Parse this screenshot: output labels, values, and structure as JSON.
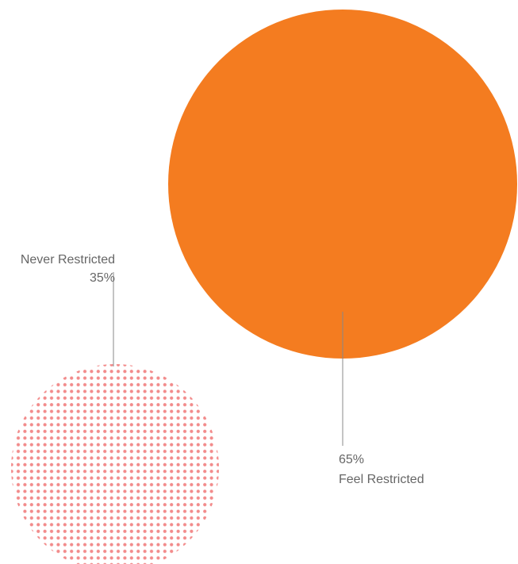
{
  "chart_data": {
    "type": "bubble",
    "series": [
      {
        "name": "Feel Restricted",
        "value": 65,
        "value_label": "65%",
        "color": "#F47C20",
        "fill": "solid"
      },
      {
        "name": "Never Restricted",
        "value": 35,
        "value_label": "35%",
        "color": "#F28B8B",
        "fill": "dotted"
      }
    ],
    "text_color": "#666666",
    "line_color": "#888888"
  }
}
